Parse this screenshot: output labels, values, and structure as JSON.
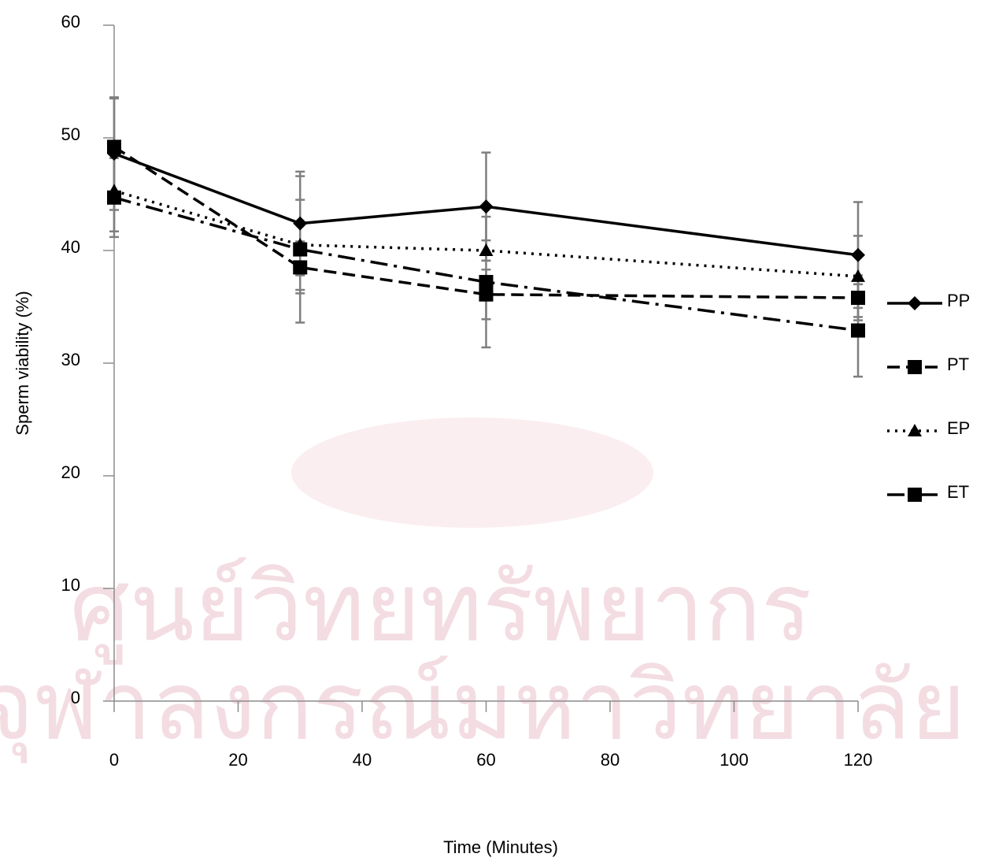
{
  "chart_data": {
    "type": "line",
    "watermark": [
      "ศูนย์วิทยทรัพยากร",
      "จุฬาลงกรณ์มหาวิทยาลัย"
    ],
    "x_label": "Time (Minutes)",
    "y_label": "Sperm viability (%)",
    "x": [
      0,
      30,
      60,
      120
    ],
    "series": [
      {
        "name": "PP",
        "color": "#000000",
        "dash": "solid",
        "marker": "diamond",
        "values": [
          48.6,
          42.4,
          43.9,
          39.6
        ],
        "errors": [
          5.0,
          4.6,
          4.8,
          4.7
        ]
      },
      {
        "name": "PT",
        "color": "#000000",
        "dash": "dashed",
        "marker": "square",
        "values": [
          49.2,
          38.5,
          36.1,
          35.8
        ],
        "errors": [
          4.3,
          2.3,
          2.2,
          2.0
        ]
      },
      {
        "name": "EP",
        "color": "#000000",
        "dash": "dotted",
        "marker": "triangle",
        "values": [
          45.3,
          40.5,
          40.0,
          37.7
        ],
        "errors": [
          3.6,
          4.0,
          0.9,
          3.6
        ]
      },
      {
        "name": "ET",
        "color": "#000000",
        "dash": "dashdot",
        "marker": "square",
        "values": [
          44.7,
          40.1,
          37.2,
          32.9
        ],
        "errors": [
          3.5,
          6.5,
          5.8,
          4.1
        ]
      }
    ],
    "error_color": "#7f7f7f",
    "xlim": [
      0,
      120
    ],
    "xticks": [
      0,
      20,
      40,
      60,
      80,
      100,
      120
    ],
    "ylim": [
      0,
      60
    ],
    "yticks": [
      0,
      10,
      20,
      30,
      40,
      50,
      60
    ],
    "grid": false,
    "legend": "right"
  }
}
